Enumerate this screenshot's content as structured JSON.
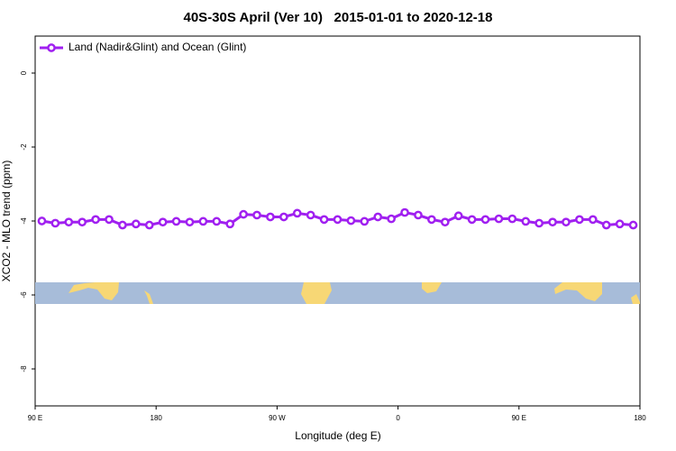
{
  "chart_data": {
    "type": "line",
    "title": "40S-30S April (Ver 10)   2015-01-01 to 2020-12-18",
    "x_label": "Longitude (deg E)",
    "y_label": "XCO2 - MLO trend (ppm)",
    "x": [
      95,
      105,
      115,
      125,
      135,
      145,
      155,
      165,
      175,
      185,
      195,
      205,
      215,
      225,
      235,
      245,
      255,
      265,
      275,
      285,
      295,
      305,
      315,
      325,
      335,
      345,
      355,
      365,
      375,
      385,
      395,
      405,
      415,
      425,
      435,
      445,
      455,
      465,
      475,
      485,
      495,
      505,
      515,
      525,
      535
    ],
    "series": [
      {
        "name": "Land (Nadir&Glint) and Ocean (Glint)",
        "color": "#a020f0",
        "values": [
          -4.0,
          -4.06,
          -4.03,
          -4.03,
          -3.96,
          -3.96,
          -4.11,
          -4.08,
          -4.11,
          -4.03,
          -4.01,
          -4.03,
          -4.01,
          -4.01,
          -4.08,
          -3.82,
          -3.84,
          -3.89,
          -3.89,
          -3.79,
          -3.84,
          -3.96,
          -3.96,
          -3.99,
          -4.01,
          -3.89,
          -3.94,
          -3.77,
          -3.84,
          -3.96,
          -4.03,
          -3.86,
          -3.96,
          -3.96,
          -3.94,
          -3.94,
          -4.01,
          -4.06,
          -4.03,
          -4.03,
          -3.96,
          -3.96,
          -4.11,
          -4.08,
          -4.11
        ]
      }
    ],
    "xlim": [
      90,
      540
    ],
    "xticks": [
      {
        "value": 90,
        "label": "90 E"
      },
      {
        "value": 180,
        "label": "180"
      },
      {
        "value": 270,
        "label": "90 W"
      },
      {
        "value": 360,
        "label": "0"
      },
      {
        "value": 450,
        "label": "90 E"
      },
      {
        "value": 540,
        "label": "180"
      }
    ],
    "ylim": [
      -9,
      1
    ],
    "yticks": [
      0,
      -2,
      -4,
      -6,
      -8
    ],
    "legend": "top-left",
    "grid": false
  }
}
